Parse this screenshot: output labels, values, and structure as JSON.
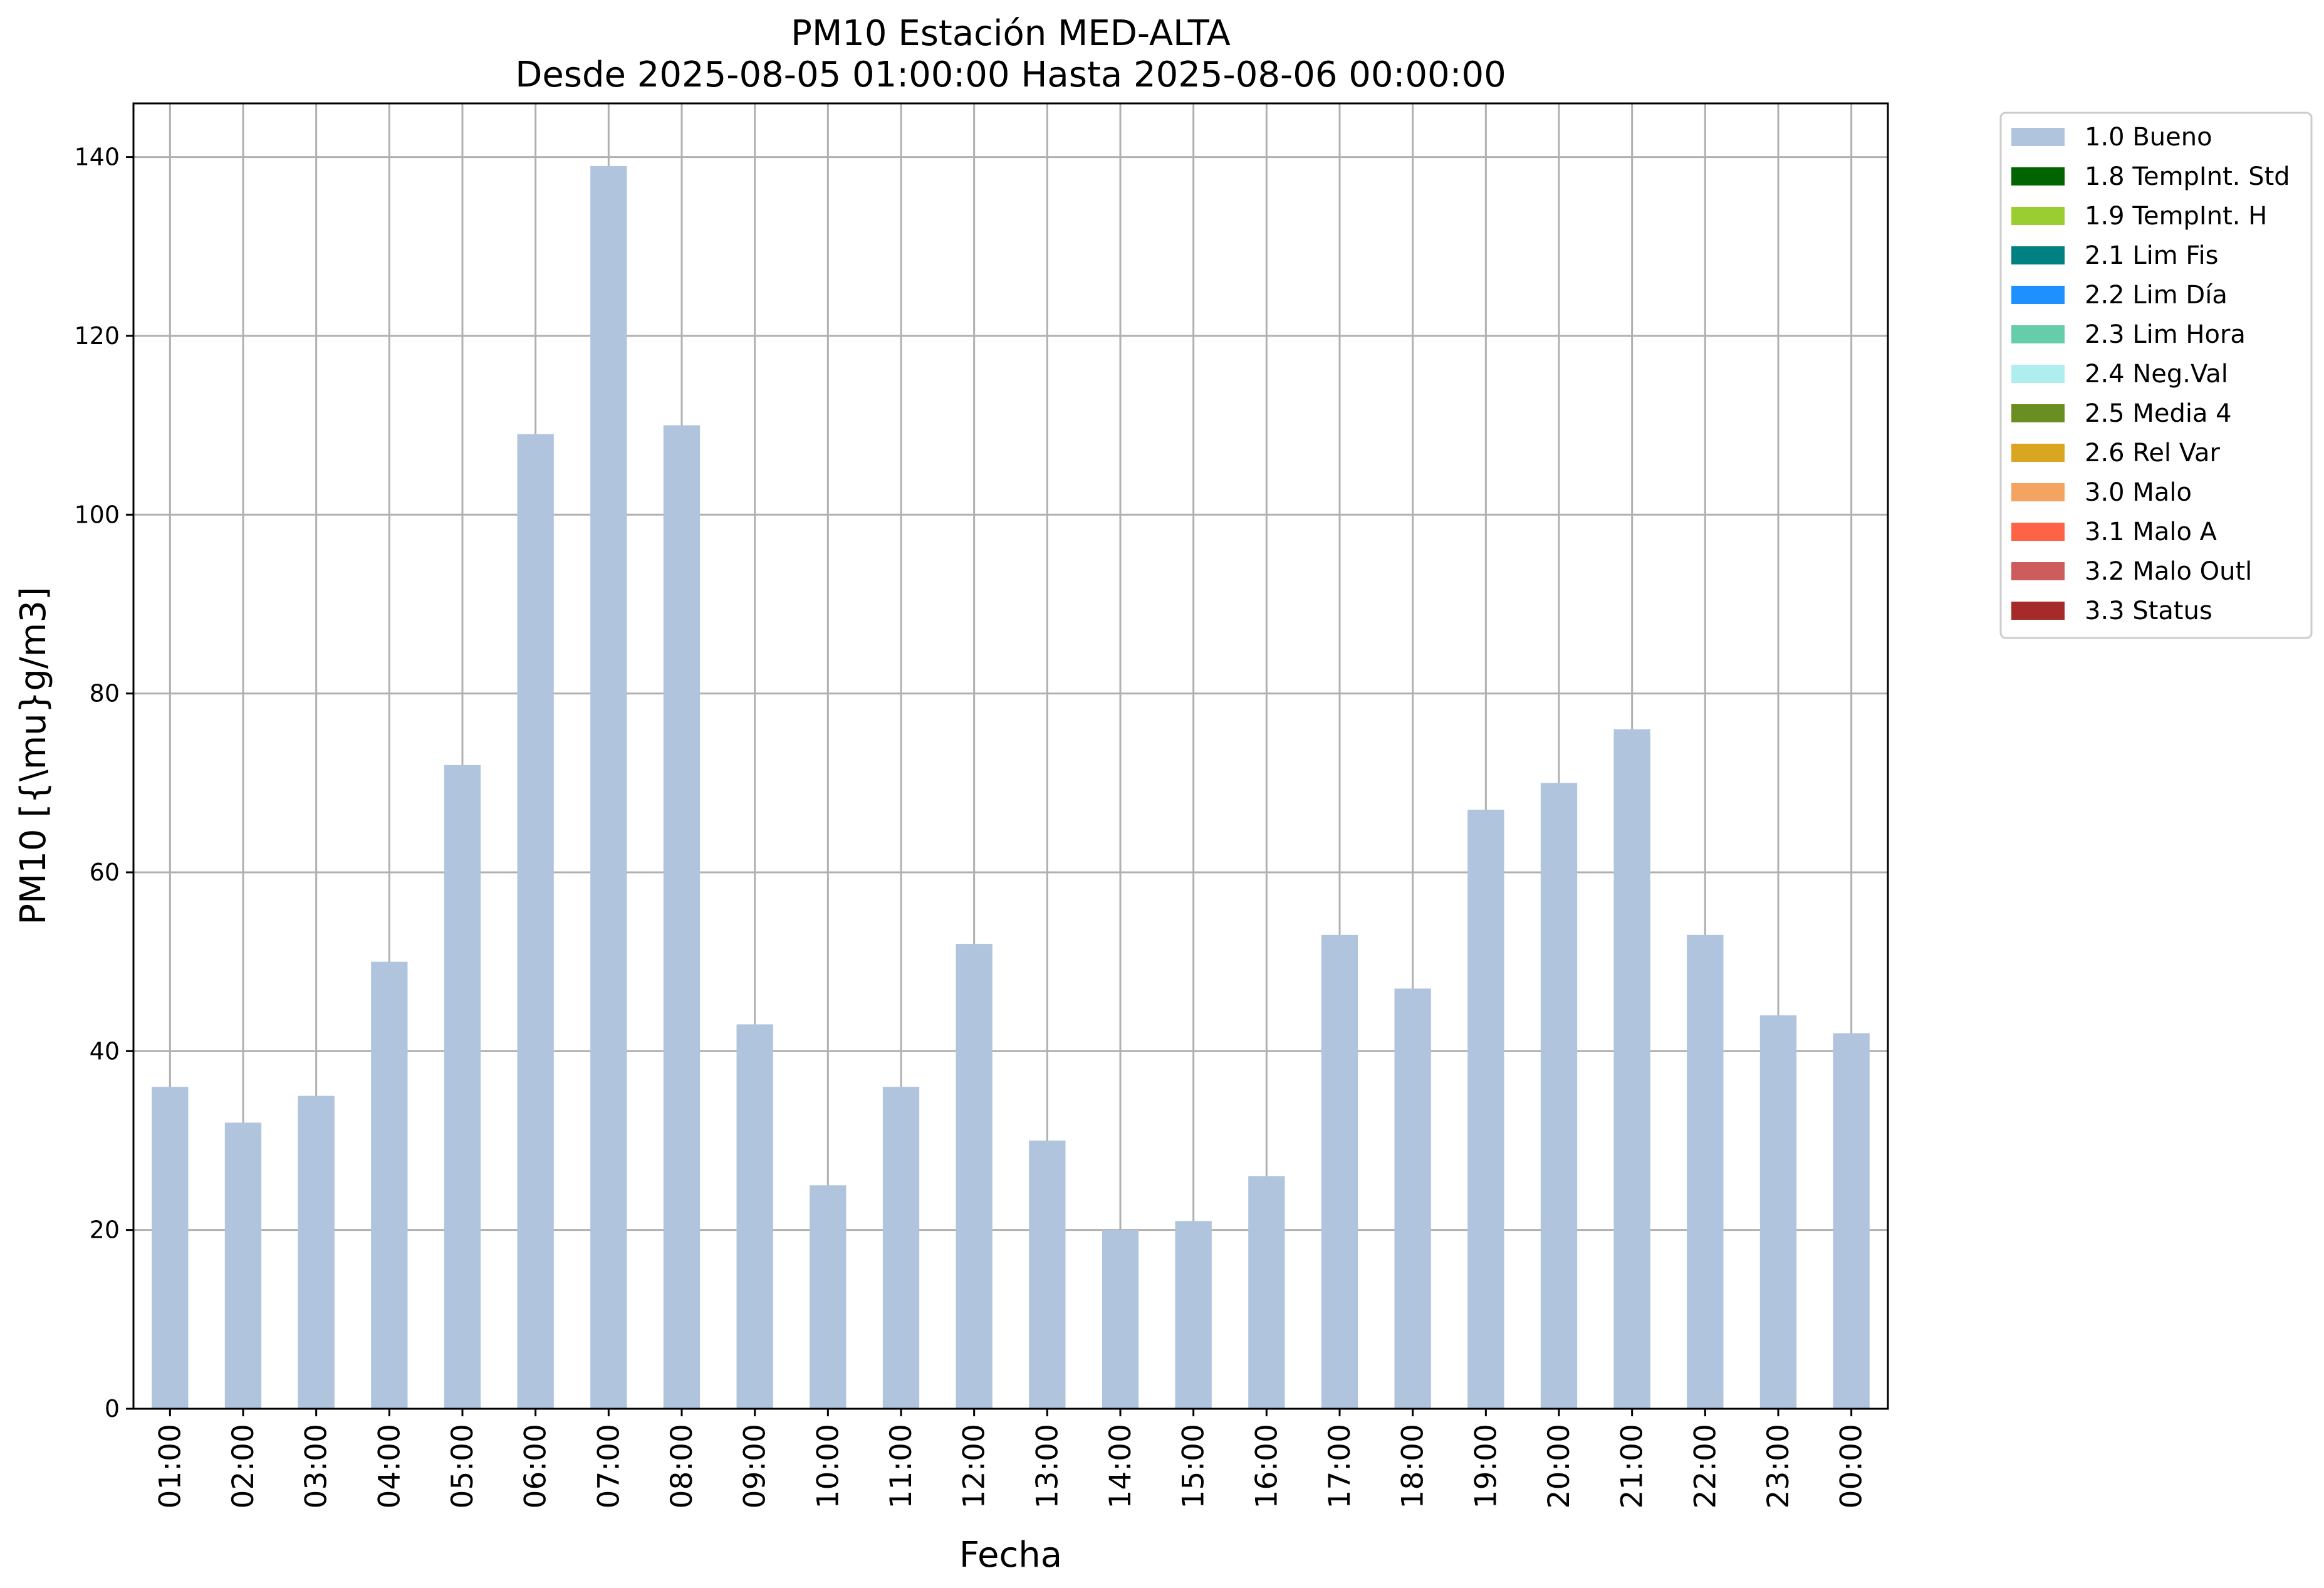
{
  "chart_data": {
    "type": "bar",
    "title": "PM10 Estación MED-ALTA",
    "subtitle": "Desde 2025-08-05 01:00:00 Hasta 2025-08-06 00:00:00",
    "xlabel": "Fecha",
    "ylabel": "PM10 [{\\mu}g/m3]",
    "ylim": [
      0,
      146
    ],
    "yticks": [
      0,
      20,
      40,
      60,
      80,
      100,
      120,
      140
    ],
    "grid": true,
    "legend_position": "outside-top-right",
    "categories": [
      "01:00",
      "02:00",
      "03:00",
      "04:00",
      "05:00",
      "06:00",
      "07:00",
      "08:00",
      "09:00",
      "10:00",
      "11:00",
      "12:00",
      "13:00",
      "14:00",
      "15:00",
      "16:00",
      "17:00",
      "18:00",
      "19:00",
      "20:00",
      "21:00",
      "22:00",
      "23:00",
      "00:00"
    ],
    "series": [
      {
        "name": "1.0 Bueno",
        "color": "#b0c4de",
        "values": [
          36,
          32,
          35,
          50,
          72,
          109,
          139,
          110,
          43,
          25,
          36,
          52,
          30,
          20,
          21,
          26,
          53,
          47,
          67,
          70,
          76,
          53,
          44,
          42
        ]
      }
    ],
    "legend": [
      {
        "label": "1.0 Bueno",
        "color": "#b0c4de"
      },
      {
        "label": "1.8 TempInt. Std",
        "color": "#006400"
      },
      {
        "label": "1.9 TempInt. H",
        "color": "#9acd32"
      },
      {
        "label": "2.1 Lim Fis",
        "color": "#008080"
      },
      {
        "label": "2.2 Lim Día",
        "color": "#1e90ff"
      },
      {
        "label": "2.3 Lim Hora",
        "color": "#66cdaa"
      },
      {
        "label": "2.4 Neg.Val",
        "color": "#afeeee"
      },
      {
        "label": "2.5 Media 4",
        "color": "#6b8e23"
      },
      {
        "label": "2.6 Rel Var",
        "color": "#daa520"
      },
      {
        "label": "3.0 Malo",
        "color": "#f4a460"
      },
      {
        "label": "3.1 Malo A",
        "color": "#ff6347"
      },
      {
        "label": "3.2 Malo Outl",
        "color": "#cd5c5c"
      },
      {
        "label": "3.3 Status",
        "color": "#a52a2a"
      }
    ]
  }
}
